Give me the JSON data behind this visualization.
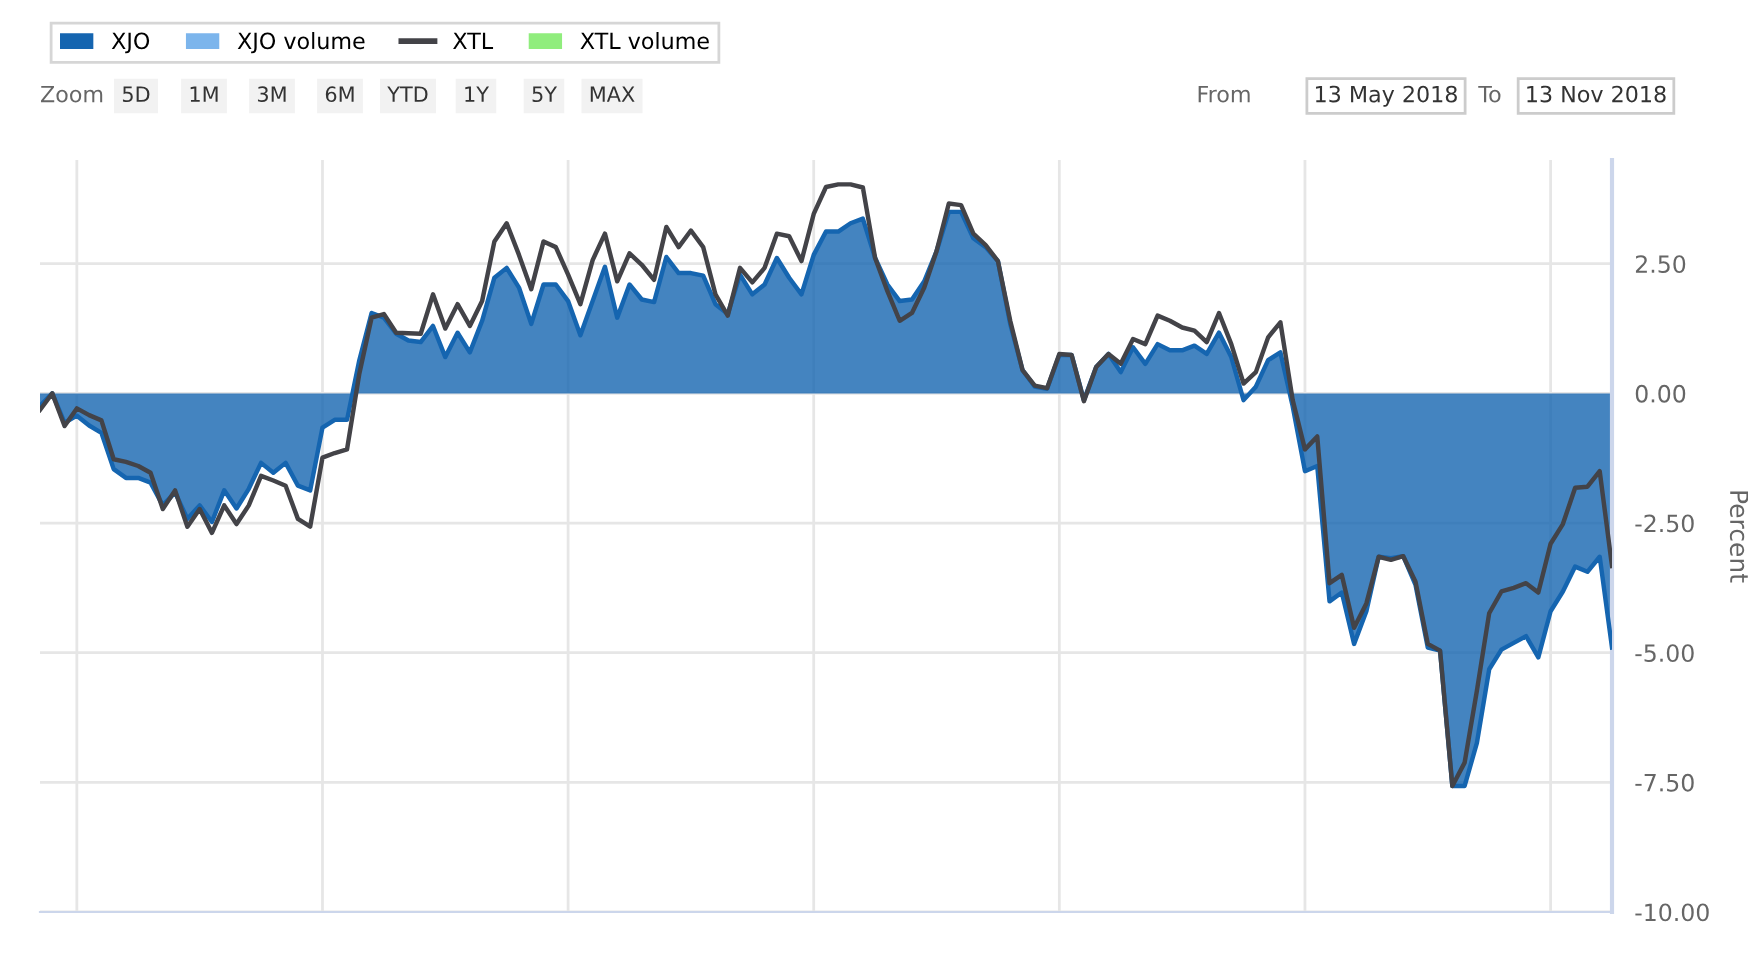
{
  "chart_data": {
    "type": "area",
    "ylabel": "Percent",
    "legend": "top left",
    "grid": true,
    "categories": [
      null,
      null,
      null,
      null,
      null,
      null,
      null,
      null,
      null,
      null,
      null,
      null,
      null,
      null,
      null,
      null,
      null,
      null,
      null,
      null,
      null,
      null,
      null,
      null,
      null,
      null,
      null,
      null,
      null,
      null,
      null,
      null,
      null,
      null,
      null,
      null,
      null,
      null,
      null,
      null,
      null,
      null,
      null,
      null,
      null,
      null,
      null,
      null,
      null,
      null,
      null,
      null,
      null,
      null,
      null,
      null,
      null,
      null,
      null,
      null,
      null,
      null,
      null,
      null,
      null,
      null,
      null,
      null,
      null,
      null,
      null,
      null,
      null,
      null,
      null,
      null,
      null,
      null,
      null,
      null,
      null,
      null,
      null,
      null,
      null,
      null,
      null,
      null,
      null,
      null,
      null,
      null,
      null,
      null,
      null,
      null,
      null,
      null,
      null,
      null,
      null,
      null,
      null,
      null,
      null,
      null,
      null,
      null,
      null,
      null,
      null,
      null,
      null,
      null,
      null,
      null,
      null,
      null,
      null,
      null,
      null,
      null,
      null,
      null,
      null,
      null,
      null,
      null,
      null
    ],
    "ylim": [
      -10,
      4.5
    ],
    "yticks": [
      {
        "value": 2.5,
        "label": "2.50"
      },
      {
        "value": 0,
        "label": "0.00"
      },
      {
        "value": -2.5,
        "label": "-2.50"
      },
      {
        "value": -5,
        "label": "-5.00"
      },
      {
        "value": -7.5,
        "label": "-7.50"
      },
      {
        "value": -10,
        "label": "-10.00"
      }
    ],
    "tick_labels": "y",
    "annotations": [
      "Zoom",
      "5D",
      "1M",
      "3M",
      "6M",
      "YTD",
      "1Y",
      "5Y",
      "MAX",
      "From",
      "13 May 2018",
      "To",
      "13 Nov 2018"
    ],
    "series": [
      {
        "name": "XJO",
        "color": "#1565b0",
        "values": [
          -0.24,
          0,
          -0.57,
          -0.43,
          -0.62,
          -0.76,
          -1.46,
          -1.63,
          -1.63,
          -1.72,
          -2.16,
          -1.91,
          -2.42,
          -2.16,
          -2.48,
          -1.87,
          -2.22,
          -1.84,
          -1.34,
          -1.53,
          -1.34,
          -1.78,
          -1.87,
          -0.66,
          -0.51,
          -0.51,
          0.64,
          1.55,
          1.46,
          1.15,
          1.02,
          0.99,
          1.3,
          0.7,
          1.17,
          0.79,
          1.4,
          2.23,
          2.42,
          2.04,
          1.34,
          2.1,
          2.1,
          1.78,
          1.12,
          1.78,
          2.44,
          1.46,
          2.1,
          1.81,
          1.76,
          2.63,
          2.32,
          2.32,
          2.27,
          1.72,
          1.53,
          2.29,
          1.91,
          2.1,
          2.61,
          2.23,
          1.91,
          2.67,
          3.12,
          3.12,
          3.28,
          3.37,
          2.61,
          2.1,
          1.78,
          1.81,
          2.16,
          2.74,
          3.5,
          3.5,
          2.99,
          2.82,
          2.55,
          1.34,
          0.45,
          0.13,
          0.09,
          0.74,
          0.74,
          -0.13,
          0.51,
          0.76,
          0.41,
          0.89,
          0.57,
          0.95,
          0.83,
          0.83,
          0.92,
          0.76,
          1.17,
          0.7,
          -0.13,
          0.13,
          0.64,
          0.79,
          -0.25,
          -1.5,
          -1.4,
          -4.01,
          -3.84,
          -4.83,
          -4.2,
          -3.15,
          -3.18,
          -3.14,
          -3.69,
          -4.9,
          -4.96,
          -7.57,
          -7.57,
          -6.74,
          -5.32,
          -4.94,
          -4.81,
          -4.68,
          -5.09,
          -4.2,
          -3.82,
          -3.34,
          -3.44,
          -3.15,
          -4.9
        ]
      },
      {
        "name": "XJO volume",
        "type": "bar",
        "color": "#7cb5ec",
        "values": [
          null,
          null,
          null,
          null,
          null,
          null,
          null,
          null,
          null,
          null,
          null,
          null,
          null,
          null,
          null,
          null,
          null,
          null,
          null,
          null,
          null,
          null,
          null,
          null,
          null,
          null,
          null,
          null,
          null,
          null,
          null,
          null,
          null,
          null,
          null,
          null,
          null,
          null,
          null,
          null,
          null,
          null,
          null,
          null,
          null,
          null,
          null,
          null,
          null,
          null,
          null,
          null,
          null,
          null,
          null,
          null,
          null,
          null,
          null,
          null,
          null,
          null,
          null,
          null,
          null,
          null,
          null,
          null,
          null,
          null,
          null,
          null,
          null,
          null,
          null,
          null,
          null,
          null,
          null,
          null,
          null,
          null,
          null,
          null,
          null,
          null,
          null,
          null,
          null,
          null,
          null,
          null,
          null,
          null,
          null,
          null,
          null,
          null,
          null,
          null,
          null,
          null,
          null,
          null,
          null,
          null,
          null,
          null,
          null,
          null,
          null,
          null,
          null,
          null,
          null,
          null,
          null,
          null,
          null,
          null,
          null,
          null,
          null,
          null,
          null,
          null,
          null,
          null,
          null
        ]
      },
      {
        "name": "XTL",
        "type": "line",
        "color": "#434348",
        "values": [
          -0.32,
          0,
          -0.63,
          -0.29,
          -0.42,
          -0.52,
          -1.27,
          -1.32,
          -1.4,
          -1.53,
          -2.23,
          -1.87,
          -2.57,
          -2.23,
          -2.69,
          -2.16,
          -2.52,
          -2.16,
          -1.59,
          -1.68,
          -1.78,
          -2.42,
          -2.57,
          -1.24,
          -1.15,
          -1.08,
          0.38,
          1.46,
          1.53,
          1.17,
          1.16,
          1.15,
          1.91,
          1.25,
          1.72,
          1.3,
          1.78,
          2.93,
          3.28,
          2.67,
          2.01,
          2.93,
          2.82,
          2.29,
          1.72,
          2.57,
          3.08,
          2.16,
          2.7,
          2.48,
          2.19,
          3.21,
          2.82,
          3.14,
          2.82,
          1.91,
          1.5,
          2.42,
          2.14,
          2.42,
          3.08,
          3.03,
          2.55,
          3.46,
          3.98,
          4.03,
          4.03,
          3.97,
          2.61,
          1.97,
          1.4,
          1.55,
          2.04,
          2.74,
          3.66,
          3.63,
          3.08,
          2.86,
          2.55,
          1.4,
          0.45,
          0.15,
          0.1,
          0.76,
          0.74,
          -0.15,
          0.51,
          0.76,
          0.57,
          1.05,
          0.95,
          1.5,
          1.4,
          1.27,
          1.21,
          0.99,
          1.55,
          0.95,
          0.19,
          0.41,
          1.08,
          1.37,
          -0.13,
          -1.08,
          -0.83,
          -3.66,
          -3.5,
          -4.52,
          -4.05,
          -3.15,
          -3.21,
          -3.14,
          -3.63,
          -4.83,
          -4.96,
          -7.57,
          -7.12,
          -5.73,
          -4.24,
          -3.82,
          -3.75,
          -3.66,
          -3.84,
          -2.9,
          -2.52,
          -1.82,
          -1.8,
          -1.5,
          -3.33
        ]
      },
      {
        "name": "XTL volume",
        "type": "bar",
        "color": "#90ed7d",
        "values": [
          null,
          null,
          null,
          null,
          null,
          null,
          null,
          null,
          null,
          null,
          null,
          null,
          null,
          null,
          null,
          null,
          null,
          null,
          null,
          null,
          null,
          null,
          null,
          null,
          null,
          null,
          null,
          null,
          null,
          null,
          null,
          null,
          null,
          null,
          null,
          null,
          null,
          null,
          null,
          null,
          null,
          null,
          null,
          null,
          null,
          null,
          null,
          null,
          null,
          null,
          null,
          null,
          null,
          null,
          null,
          null,
          null,
          null,
          null,
          null,
          null,
          null,
          null,
          null,
          null,
          null,
          null,
          null,
          null,
          null,
          null,
          null,
          null,
          null,
          null,
          null,
          null,
          null,
          null,
          null,
          null,
          null,
          null,
          null,
          null,
          null,
          null,
          null,
          null,
          null,
          null,
          null,
          null,
          null,
          null,
          null,
          null,
          null,
          null,
          null,
          null,
          null,
          null,
          null,
          null,
          null,
          null,
          null,
          null,
          null,
          null,
          null,
          null,
          null,
          null,
          null,
          null,
          null,
          null,
          null,
          null,
          null,
          null,
          null,
          null,
          null,
          null,
          null,
          null
        ]
      }
    ]
  }
}
